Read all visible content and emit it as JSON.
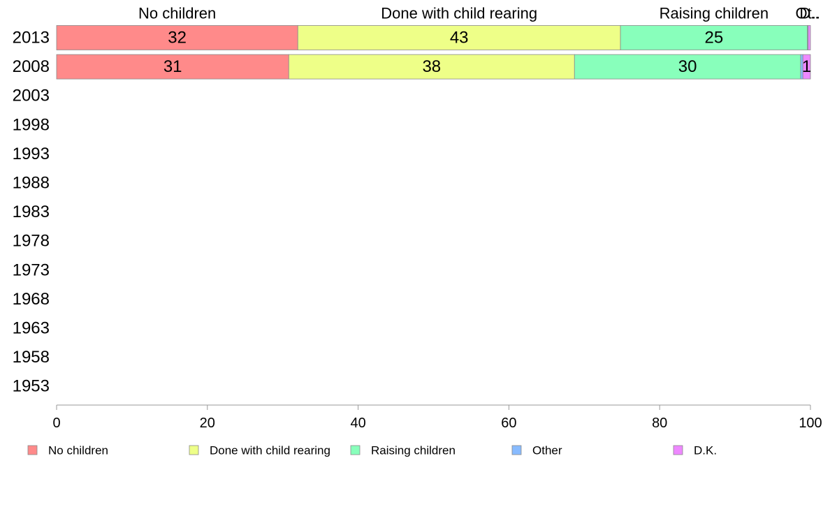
{
  "chart_data": {
    "type": "bar",
    "orientation": "horizontal",
    "stacked": true,
    "categories": [
      "2013",
      "2008",
      "2003",
      "1998",
      "1993",
      "1988",
      "1983",
      "1978",
      "1973",
      "1968",
      "1963",
      "1958",
      "1953"
    ],
    "series": [
      {
        "name": "No children",
        "color": "#ff8a8a",
        "values": [
          32,
          30.8,
          null,
          null,
          null,
          null,
          null,
          null,
          null,
          null,
          null,
          null,
          null
        ],
        "labels": [
          "32",
          "31",
          "",
          "",
          "",
          "",
          "",
          "",
          "",
          "",
          "",
          "",
          ""
        ]
      },
      {
        "name": "Done with child rearing",
        "color": "#eeff88",
        "values": [
          42.8,
          37.9,
          null,
          null,
          null,
          null,
          null,
          null,
          null,
          null,
          null,
          null,
          null
        ],
        "labels": [
          "43",
          "38",
          "",
          "",
          "",
          "",
          "",
          "",
          "",
          "",
          "",
          "",
          ""
        ]
      },
      {
        "name": "Raising children",
        "color": "#88ffbb",
        "values": [
          24.8,
          30,
          null,
          null,
          null,
          null,
          null,
          null,
          null,
          null,
          null,
          null,
          null
        ],
        "labels": [
          "25",
          "30",
          "",
          "",
          "",
          "",
          "",
          "",
          "",
          "",
          "",
          "",
          ""
        ]
      },
      {
        "name": "Other",
        "color": "#88bbff",
        "values": [
          0.1,
          0.3,
          null,
          null,
          null,
          null,
          null,
          null,
          null,
          null,
          null,
          null,
          null
        ],
        "labels": [
          "",
          "",
          "",
          "",
          "",
          "",
          "",
          "",
          "",
          "",
          "",
          "",
          ""
        ]
      },
      {
        "name": "D.K.",
        "color": "#ee88ff",
        "values": [
          0.3,
          1,
          null,
          null,
          null,
          null,
          null,
          null,
          null,
          null,
          null,
          null,
          null
        ],
        "labels": [
          "",
          "1",
          "",
          "",
          "",
          "",
          "",
          "",
          "",
          "",
          "",
          "",
          ""
        ]
      }
    ],
    "top_labels": [
      "No children",
      "Done with child rearing",
      "Raising children",
      "Ot..",
      "D.."
    ],
    "xlim": [
      0,
      100
    ],
    "xticks": [
      "0",
      "20",
      "40",
      "60",
      "80",
      "100"
    ],
    "grid": false,
    "legend_position": "bottom"
  }
}
